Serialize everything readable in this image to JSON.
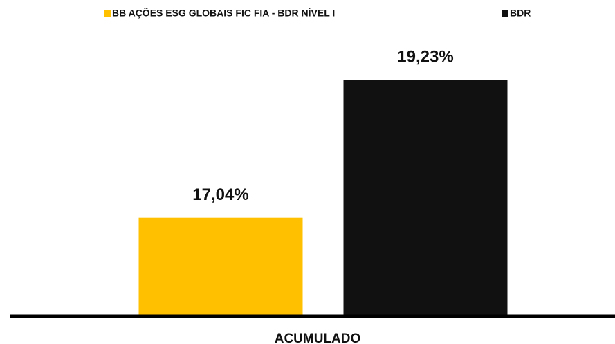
{
  "chart_data": {
    "type": "bar",
    "categories": [
      "ACUMULADO"
    ],
    "series": [
      {
        "name": "BB AÇÕES ESG GLOBAIS FIC FIA - BDR NÍVEL I",
        "color": "#FFC000",
        "values": [
          17.04
        ],
        "value_labels": [
          "17,04%"
        ]
      },
      {
        "name": "BDR",
        "color": "#111111",
        "values": [
          19.23
        ],
        "value_labels": [
          "19,23%"
        ]
      }
    ],
    "ylim": [
      15.5,
      20
    ],
    "legend": "top"
  }
}
